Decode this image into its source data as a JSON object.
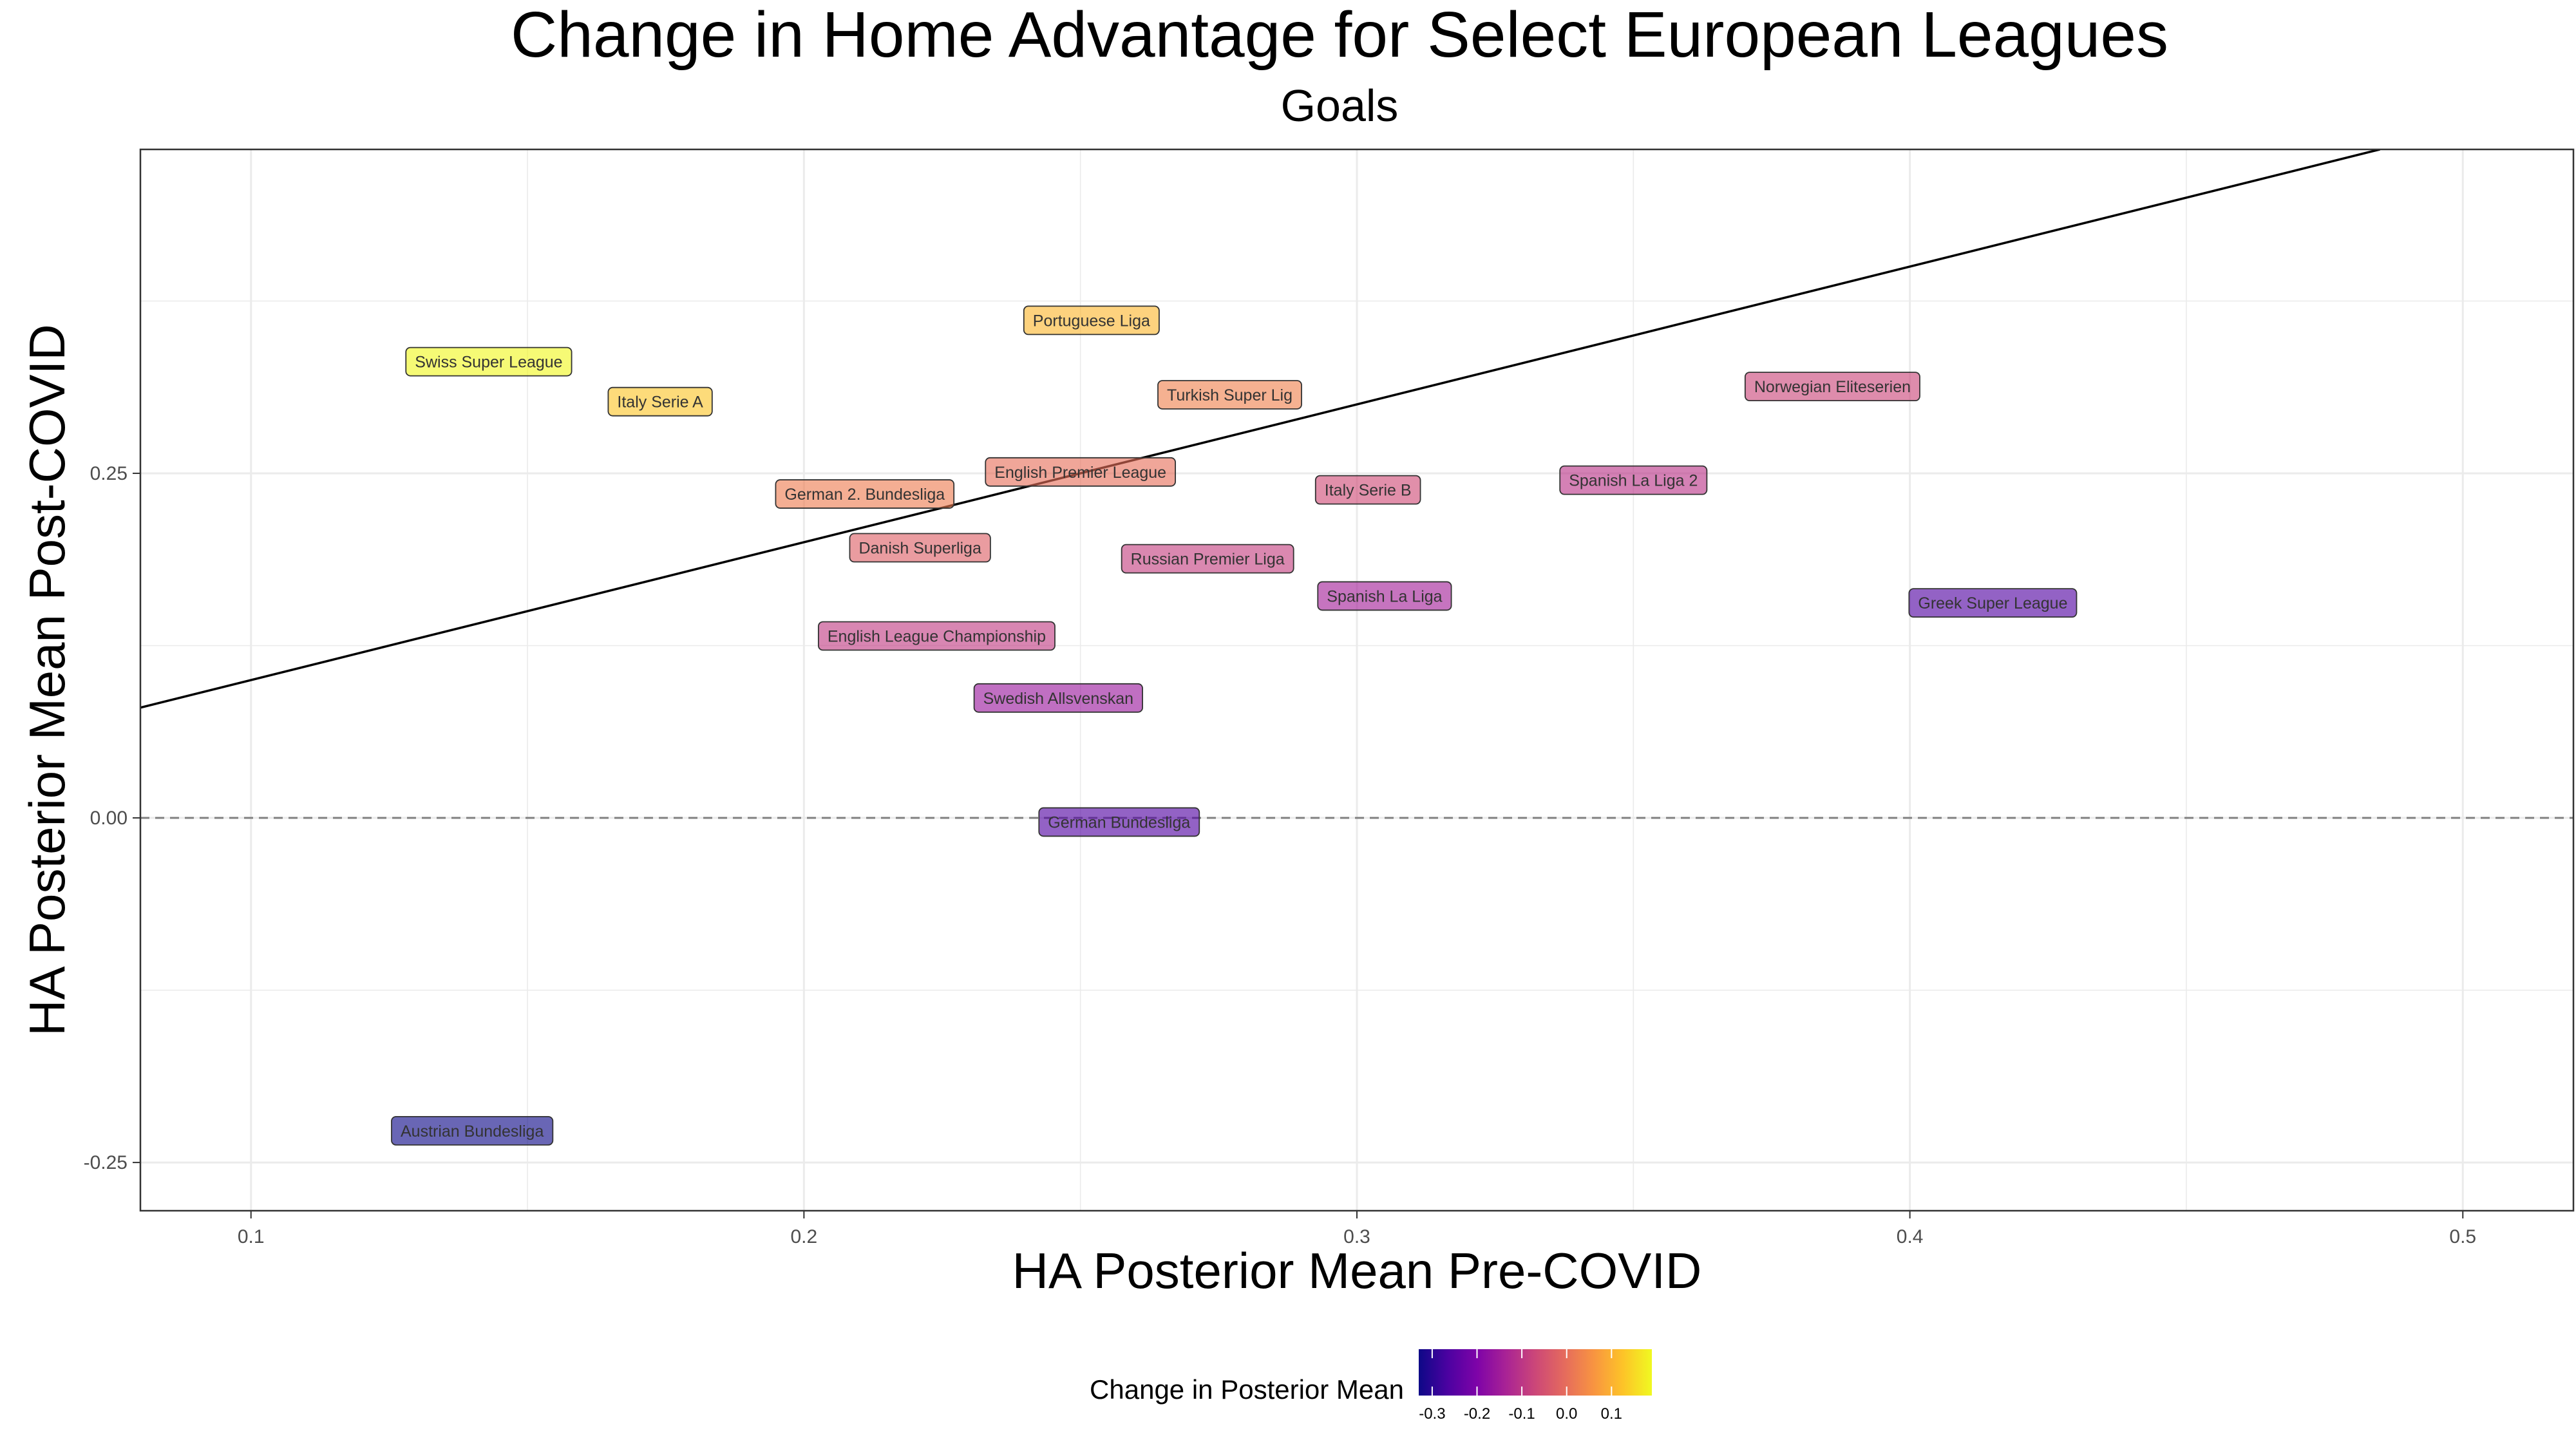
{
  "chart_data": {
    "type": "scatter",
    "title": "Change in Home Advantage for Select European Leagues",
    "subtitle": "Goals",
    "xlabel": "HA Posterior Mean Pre-COVID",
    "ylabel": "HA Posterior Mean Post-COVID",
    "xlim": [
      0.08,
      0.52
    ],
    "ylim": [
      -0.285,
      0.485
    ],
    "x_ticks": [
      0.1,
      0.2,
      0.3,
      0.4,
      0.5
    ],
    "x_tick_labels": [
      "0.1",
      "0.2",
      "0.3",
      "0.4",
      "0.5"
    ],
    "y_ticks": [
      -0.25,
      0.0,
      0.25
    ],
    "y_tick_labels": [
      "-0.25",
      "0.00",
      "0.25"
    ],
    "grid": true,
    "reference_lines": [
      {
        "type": "identity",
        "style": "solid",
        "description": "y = x"
      },
      {
        "type": "horizontal",
        "y": 0.0,
        "style": "dashed"
      }
    ],
    "legend": {
      "title": "Change in Posterior Mean",
      "placement": "bottom",
      "scale": "plasma",
      "range": [
        -0.33,
        0.19
      ],
      "ticks": [
        -0.3,
        -0.2,
        -0.1,
        0.0,
        0.1
      ],
      "tick_labels": [
        "-0.3",
        "-0.2",
        "-0.1",
        "0.0",
        "0.1"
      ]
    },
    "points": [
      {
        "label": "Swiss Super League",
        "x": 0.143,
        "y": 0.331,
        "change": 0.188
      },
      {
        "label": "Italy Serie A",
        "x": 0.174,
        "y": 0.302,
        "change": 0.128
      },
      {
        "label": "Portuguese Liga",
        "x": 0.252,
        "y": 0.361,
        "change": 0.109
      },
      {
        "label": "German 2. Bundesliga",
        "x": 0.211,
        "y": 0.235,
        "change": 0.024
      },
      {
        "label": "English Premier League",
        "x": 0.25,
        "y": 0.251,
        "change": 0.001
      },
      {
        "label": "Turkish Super Lig",
        "x": 0.277,
        "y": 0.307,
        "change": 0.03
      },
      {
        "label": "Danish Superliga",
        "x": 0.221,
        "y": 0.196,
        "change": -0.025
      },
      {
        "label": "Russian Premier Liga",
        "x": 0.273,
        "y": 0.188,
        "change": -0.085
      },
      {
        "label": "English League Championship",
        "x": 0.224,
        "y": 0.132,
        "change": -0.092
      },
      {
        "label": "Swedish Allsvenskan",
        "x": 0.246,
        "y": 0.087,
        "change": -0.159
      },
      {
        "label": "German Bundesliga",
        "x": 0.257,
        "y": -0.003,
        "change": -0.26
      },
      {
        "label": "Italy Serie B",
        "x": 0.302,
        "y": 0.238,
        "change": -0.064
      },
      {
        "label": "Spanish La Liga",
        "x": 0.305,
        "y": 0.161,
        "change": -0.144
      },
      {
        "label": "Spanish La Liga 2",
        "x": 0.35,
        "y": 0.245,
        "change": -0.105
      },
      {
        "label": "Norwegian Eliteserien",
        "x": 0.386,
        "y": 0.313,
        "change": -0.073
      },
      {
        "label": "Greek Super League",
        "x": 0.415,
        "y": 0.156,
        "change": -0.259
      },
      {
        "label": "Austrian Bundesliga",
        "x": 0.14,
        "y": -0.227,
        "change": -0.367
      }
    ]
  }
}
